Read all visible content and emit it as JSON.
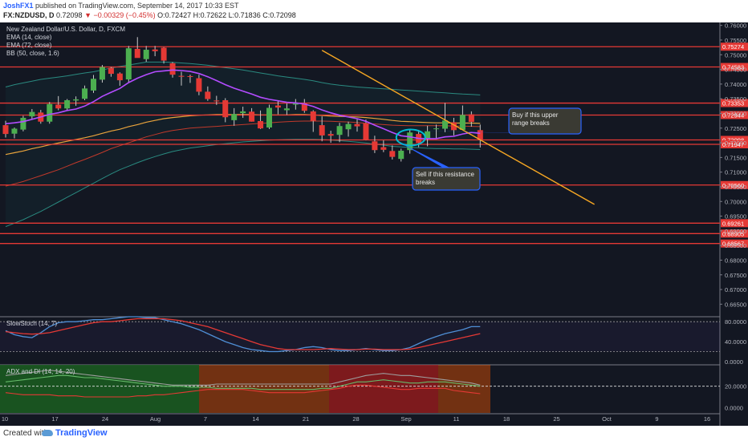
{
  "header": {
    "publisher": "JoshFX1",
    "published_text": "published on TradingView.com, September 14, 2017 10:33 EST",
    "symbol": "FX:NZDUSD, D",
    "last": "0.72098",
    "change": "−0.00329 (−0.45%)",
    "ohlc": "O:0.72427 H:0.72622 L:0.71836 C:0.72098"
  },
  "footer": {
    "created_with": "Created with",
    "brand": "TradingView"
  },
  "chart_data": [
    {
      "type": "candlestick",
      "title": "New Zealand Dollar/U.S. Dollar, D, FXCM",
      "indicators": [
        "EMA (14, close)",
        "EMA (72, close)",
        "BB (50, close, 1.6)"
      ],
      "ylim": [
        0.661,
        0.761
      ],
      "y_ticks": [
        0.76,
        0.755,
        0.75,
        0.745,
        0.74,
        0.735,
        0.73,
        0.725,
        0.72,
        0.715,
        0.71,
        0.705,
        0.7,
        0.695,
        0.69,
        0.685,
        0.68,
        0.675,
        0.67,
        0.665
      ],
      "x_tick_labels": [
        "10",
        "17",
        "24",
        "Aug",
        "7",
        "14",
        "21",
        "28",
        "Sep",
        "11",
        "18",
        "25",
        "Oct",
        "9",
        "16"
      ],
      "candles": [
        [
          0.726,
          0.7275,
          0.7218,
          0.723
        ],
        [
          0.7231,
          0.7252,
          0.7215,
          0.7248
        ],
        [
          0.7245,
          0.7292,
          0.7239,
          0.7285
        ],
        [
          0.729,
          0.7315,
          0.728,
          0.7305
        ],
        [
          0.7303,
          0.7312,
          0.7265,
          0.7272
        ],
        [
          0.7272,
          0.7339,
          0.7265,
          0.7332
        ],
        [
          0.733,
          0.7359,
          0.7311,
          0.7317
        ],
        [
          0.7317,
          0.7349,
          0.7309,
          0.7345
        ],
        [
          0.7344,
          0.7358,
          0.7326,
          0.7348
        ],
        [
          0.735,
          0.7395,
          0.7345,
          0.7385
        ],
        [
          0.7378,
          0.7431,
          0.737,
          0.7418
        ],
        [
          0.7415,
          0.7465,
          0.7405,
          0.7458
        ],
        [
          0.7455,
          0.7458,
          0.7425,
          0.7435
        ],
        [
          0.7436,
          0.744,
          0.7394,
          0.7413
        ],
        [
          0.7416,
          0.753,
          0.7404,
          0.7522
        ],
        [
          0.752,
          0.756,
          0.749,
          0.7489
        ],
        [
          0.7485,
          0.753,
          0.7476,
          0.7517
        ],
        [
          0.7518,
          0.753,
          0.7495,
          0.7512
        ],
        [
          0.7524,
          0.7526,
          0.747,
          0.748
        ],
        [
          0.7471,
          0.7475,
          0.7422,
          0.7432
        ],
        [
          0.7428,
          0.7442,
          0.7395,
          0.7425
        ],
        [
          0.7427,
          0.7432,
          0.7404,
          0.7425
        ],
        [
          0.742,
          0.7432,
          0.7362,
          0.7374
        ],
        [
          0.7374,
          0.7392,
          0.7343,
          0.7349
        ],
        [
          0.7344,
          0.736,
          0.7329,
          0.7341
        ],
        [
          0.7345,
          0.7352,
          0.727,
          0.7287
        ],
        [
          0.7277,
          0.7318,
          0.7258,
          0.7298
        ],
        [
          0.7301,
          0.7323,
          0.7285,
          0.7307
        ],
        [
          0.7306,
          0.7318,
          0.7272,
          0.7272
        ],
        [
          0.7274,
          0.731,
          0.7247,
          0.7249
        ],
        [
          0.7252,
          0.733,
          0.7247,
          0.7319
        ],
        [
          0.7327,
          0.7341,
          0.7297,
          0.732
        ],
        [
          0.7311,
          0.7334,
          0.7295,
          0.7317
        ],
        [
          0.733,
          0.7349,
          0.7313,
          0.7334
        ],
        [
          0.7336,
          0.7349,
          0.7302,
          0.7309
        ],
        [
          0.7307,
          0.7311,
          0.7237,
          0.7275
        ],
        [
          0.726,
          0.729,
          0.7205,
          0.7225
        ],
        [
          0.723,
          0.7241,
          0.72,
          0.7224
        ],
        [
          0.7227,
          0.7268,
          0.7202,
          0.7257
        ],
        [
          0.7246,
          0.7272,
          0.7221,
          0.7264
        ],
        [
          0.7264,
          0.728,
          0.7238,
          0.7256
        ],
        [
          0.7267,
          0.7279,
          0.7208,
          0.7209
        ],
        [
          0.7205,
          0.7224,
          0.7165,
          0.7175
        ],
        [
          0.7185,
          0.7208,
          0.7168,
          0.7176
        ],
        [
          0.7172,
          0.7191,
          0.7143,
          0.7152
        ],
        [
          0.7145,
          0.718,
          0.7136,
          0.7173
        ],
        [
          0.7175,
          0.7244,
          0.7163,
          0.7235
        ],
        [
          0.723,
          0.7244,
          0.7185,
          0.7199
        ],
        [
          0.7215,
          0.7258,
          0.7188,
          0.7239
        ],
        [
          0.7248,
          0.7262,
          0.7215,
          0.7249
        ],
        [
          0.7248,
          0.7336,
          0.7236,
          0.7276
        ],
        [
          0.727,
          0.7285,
          0.7225,
          0.7243
        ],
        [
          0.7244,
          0.7327,
          0.7244,
          0.7295
        ],
        [
          0.7297,
          0.7307,
          0.7255,
          0.7271
        ],
        [
          0.7243,
          0.7262,
          0.7184,
          0.721
        ]
      ],
      "ema14": [
        0.7265,
        0.7268,
        0.7272,
        0.728,
        0.7288,
        0.7297,
        0.7302,
        0.731,
        0.7315,
        0.7325,
        0.734,
        0.7358,
        0.7372,
        0.7385,
        0.7405,
        0.742,
        0.7432,
        0.7442,
        0.7445,
        0.7448,
        0.7446,
        0.7443,
        0.7436,
        0.7425,
        0.7412,
        0.7398,
        0.7386,
        0.7376,
        0.7366,
        0.7355,
        0.7348,
        0.7343,
        0.7338,
        0.7336,
        0.7332,
        0.7324,
        0.7312,
        0.7302,
        0.7294,
        0.7288,
        0.7282,
        0.7273,
        0.726,
        0.7248,
        0.7235,
        0.7224,
        0.722,
        0.7215,
        0.7214,
        0.7214,
        0.722,
        0.7222,
        0.723,
        0.7235,
        0.7232
      ],
      "ema72": [
        0.716,
        0.7166,
        0.7172,
        0.718,
        0.7186,
        0.7193,
        0.7199,
        0.7205,
        0.7211,
        0.7217,
        0.7224,
        0.7232,
        0.724,
        0.7246,
        0.7255,
        0.7262,
        0.727,
        0.7276,
        0.7282,
        0.7286,
        0.7289,
        0.7292,
        0.7294,
        0.7295,
        0.7296,
        0.7296,
        0.7296,
        0.7296,
        0.7296,
        0.7295,
        0.7295,
        0.7295,
        0.7295,
        0.7296,
        0.7296,
        0.7295,
        0.7293,
        0.7291,
        0.729,
        0.7289,
        0.7288,
        0.7286,
        0.7283,
        0.728,
        0.7276,
        0.7273,
        0.7272,
        0.727,
        0.7269,
        0.7268,
        0.7268,
        0.7267,
        0.7267,
        0.7267,
        0.7266
      ],
      "bb_basis": [
        0.7052,
        0.706,
        0.7068,
        0.7078,
        0.7088,
        0.7098,
        0.7108,
        0.712,
        0.7132,
        0.7143,
        0.7155,
        0.7167,
        0.718,
        0.719,
        0.72,
        0.721,
        0.722,
        0.7228,
        0.7236,
        0.7242,
        0.7246,
        0.725,
        0.7252,
        0.7254,
        0.7256,
        0.7258,
        0.726,
        0.7262,
        0.7264,
        0.7266,
        0.7268,
        0.727,
        0.7272,
        0.7273,
        0.7274,
        0.7274,
        0.7274,
        0.7273,
        0.7272,
        0.7271,
        0.7269,
        0.7266,
        0.7264,
        0.7262,
        0.726,
        0.7259,
        0.7258,
        0.7258,
        0.7258,
        0.7258,
        0.7258,
        0.7257,
        0.7257,
        0.7256,
        0.7255
      ],
      "bb_upper": [
        0.739,
        0.7398,
        0.7404,
        0.741,
        0.7416,
        0.742,
        0.7424,
        0.7428,
        0.7433,
        0.7438,
        0.7442,
        0.7448,
        0.7455,
        0.746,
        0.7465,
        0.747,
        0.7475,
        0.7475,
        0.7475,
        0.7474,
        0.7472,
        0.747,
        0.7467,
        0.7464,
        0.746,
        0.7456,
        0.7452,
        0.7448,
        0.7443,
        0.7438,
        0.7433,
        0.7428,
        0.7424,
        0.742,
        0.7416,
        0.7411,
        0.7405,
        0.74,
        0.7396,
        0.7393,
        0.739,
        0.7388,
        0.7386,
        0.7384,
        0.7382,
        0.738,
        0.7378,
        0.7376,
        0.7374,
        0.7372,
        0.737,
        0.7368,
        0.7366,
        0.7365,
        0.7363
      ],
      "bb_lower": [
        0.6914,
        0.6926,
        0.6938,
        0.6952,
        0.6966,
        0.6982,
        0.6998,
        0.7014,
        0.703,
        0.7046,
        0.7062,
        0.7078,
        0.7094,
        0.7108,
        0.712,
        0.7132,
        0.7143,
        0.7153,
        0.7162,
        0.717,
        0.7176,
        0.7182,
        0.7186,
        0.719,
        0.7194,
        0.7197,
        0.72,
        0.7203,
        0.7205,
        0.7207,
        0.7209,
        0.721,
        0.7211,
        0.7212,
        0.7212,
        0.7212,
        0.7211,
        0.7209,
        0.7207,
        0.7205,
        0.7202,
        0.7199,
        0.7195,
        0.7192,
        0.7188,
        0.7186,
        0.7184,
        0.7183,
        0.7181,
        0.718,
        0.718,
        0.7179,
        0.7179,
        0.7178,
        0.7177
      ],
      "horizontal_levels": [
        0.75274,
        0.74583,
        0.73353,
        0.72944,
        0.72098,
        0.71947,
        0.7056,
        0.69261,
        0.68905,
        0.68567
      ],
      "level_labels": [
        "0.75274",
        "0.74583",
        "0.73353",
        "0.72944",
        "0.72098",
        "0.71947",
        "0.70560",
        "0.69261",
        "0.68905",
        "0.68567"
      ],
      "trendline": [
        [
          36,
          0.7515
        ],
        [
          67,
          0.699
        ]
      ],
      "annotations": [
        {
          "text": "Buy if this upper range breaks",
          "points_to": [
            45,
            0.7215
          ]
        },
        {
          "text": "Sell if this resistance breaks",
          "points_to": [
            45,
            0.719
          ]
        }
      ]
    },
    {
      "type": "line",
      "title": "SlowStoch (14, 7)",
      "ylim": [
        -5,
        90
      ],
      "y_ticks": [
        80,
        40,
        0
      ],
      "y_tick_labels": [
        "80.0000",
        "40.0000",
        "0.0000"
      ],
      "bands": [
        80,
        20
      ],
      "series": [
        {
          "values": [
            62,
            54,
            50,
            48,
            58,
            70,
            78,
            80,
            80,
            82,
            84,
            84,
            86,
            88,
            90,
            90,
            88,
            88,
            84,
            80,
            76,
            70,
            64,
            56,
            48,
            40,
            34,
            28,
            24,
            22,
            20,
            20,
            22,
            24,
            28,
            30,
            28,
            24,
            22,
            22,
            24,
            26,
            24,
            22,
            22,
            24,
            28,
            36,
            44,
            50,
            56,
            60,
            64,
            70,
            70
          ]
        },
        {
          "values": [
            60,
            58,
            56,
            55,
            56,
            58,
            62,
            66,
            70,
            74,
            78,
            80,
            80,
            82,
            84,
            86,
            86,
            86,
            86,
            84,
            82,
            78,
            74,
            70,
            64,
            58,
            52,
            46,
            40,
            34,
            30,
            26,
            24,
            24,
            24,
            24,
            25,
            26,
            25,
            24,
            24,
            25,
            25,
            24,
            24,
            24,
            25,
            28,
            32,
            36,
            40,
            44,
            48,
            52,
            56
          ]
        }
      ]
    },
    {
      "type": "line",
      "title": "ADX and DI (14, 14, 20)",
      "ylim": [
        -5,
        40
      ],
      "y_ticks": [
        20,
        0
      ],
      "y_tick_labels": [
        "20.0000",
        "0.0000"
      ],
      "level": 20,
      "series": [
        {
          "values": [
            30,
            31,
            32,
            33,
            34,
            35,
            34,
            33,
            32,
            31,
            30,
            29,
            28,
            27,
            26,
            25,
            24,
            23,
            22,
            21,
            21,
            21,
            21,
            21,
            22,
            22,
            22,
            22,
            22,
            22,
            22,
            22,
            22,
            22,
            22,
            22,
            22,
            22,
            24,
            26,
            28,
            30,
            31,
            32,
            31,
            30,
            30,
            29,
            28,
            27,
            26,
            25,
            24,
            23,
            21
          ]
        },
        {
          "values": [
            24,
            25,
            26,
            27,
            28,
            29,
            30,
            30,
            29,
            28,
            28,
            27,
            26,
            25,
            24,
            23,
            22,
            21,
            20,
            20,
            20,
            19,
            19,
            19,
            18,
            18,
            18,
            18,
            18,
            17,
            17,
            17,
            17,
            17,
            17,
            17,
            18,
            18,
            20,
            22,
            24,
            24,
            25,
            26,
            25,
            24,
            23,
            23,
            24,
            24,
            24,
            23,
            22,
            21,
            20
          ]
        },
        {
          "values": [
            14,
            13,
            12,
            12,
            12,
            12,
            11,
            11,
            11,
            10,
            10,
            10,
            10,
            10,
            10,
            11,
            11,
            12,
            12,
            13,
            14,
            15,
            16,
            17,
            17,
            17,
            17,
            17,
            16,
            15,
            14,
            14,
            14,
            14,
            14,
            15,
            16,
            17,
            18,
            20,
            21,
            21,
            20,
            19,
            18,
            17,
            17,
            18,
            18,
            18,
            18,
            16,
            15,
            14,
            13
          ]
        }
      ]
    }
  ]
}
